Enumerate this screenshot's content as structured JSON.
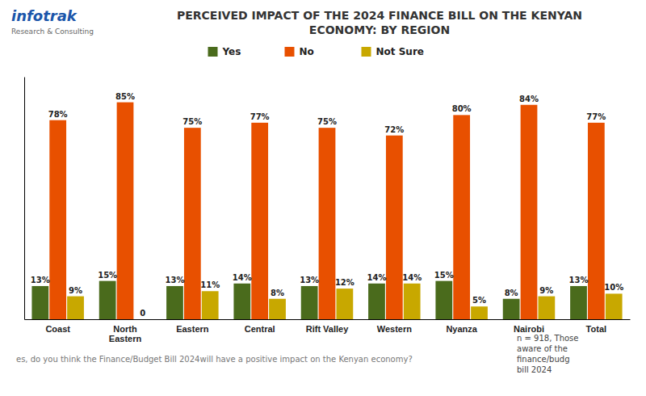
{
  "chart_data": {
    "type": "bar",
    "title": "PERCEIVED IMPACT OF THE 2024 FINANCE BILL ON THE KENYAN\nECONOMY: BY REGION",
    "categories": [
      "Coast",
      "North\nEastern",
      "Eastern",
      "Central",
      "Rift Valley",
      "Western",
      "Nyanza",
      "Nairobi",
      "Total"
    ],
    "series": [
      {
        "name": "Yes",
        "color": "#4a6b1c",
        "values": [
          13,
          15,
          13,
          14,
          13,
          14,
          15,
          8,
          13
        ],
        "value_labels": [
          "13%",
          "15%",
          "13%",
          "14%",
          "13%",
          "14%",
          "15%",
          "8%",
          "13%"
        ]
      },
      {
        "name": "No",
        "color": "#e85000",
        "values": [
          78,
          85,
          75,
          77,
          75,
          72,
          80,
          84,
          77
        ],
        "value_labels": [
          "78%",
          "85%",
          "75%",
          "77%",
          "75%",
          "72%",
          "80%",
          "84%",
          "77%"
        ]
      },
      {
        "name": "Not Sure",
        "color": "#c8a800",
        "values": [
          9,
          0,
          11,
          8,
          12,
          14,
          5,
          9,
          10
        ],
        "value_labels": [
          "9%",
          "0",
          "11%",
          "8%",
          "12%",
          "14%",
          "5%",
          "9%",
          "10%"
        ]
      }
    ],
    "ylim": [
      0,
      95
    ],
    "tick_labels": "x",
    "grid": false,
    "legend": "top",
    "data_labels": true,
    "annotations": [
      "infotrak",
      "Research & Consulting",
      "es, do you think the Finance/Budget Bill 2024will have a positive impact on the Kenyan economy?",
      "n = 918, Those\naware of the\nfinance/budg\nbill 2024"
    ]
  }
}
